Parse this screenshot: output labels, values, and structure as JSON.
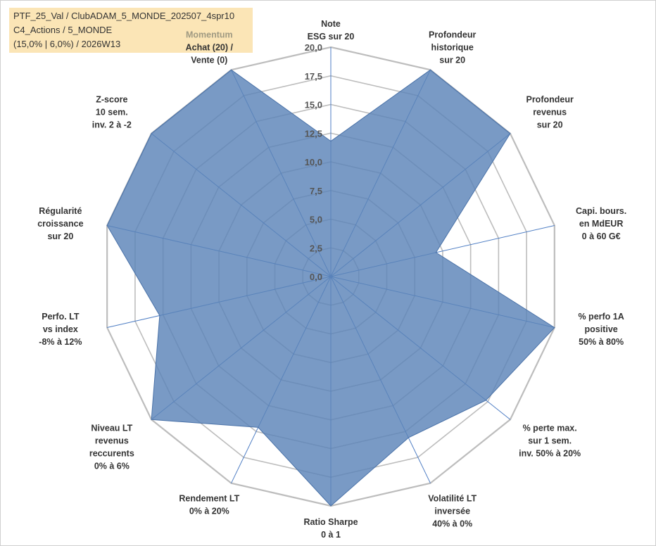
{
  "info": {
    "line1": "PTF_25_Val / ClubADAM_5_MONDE_202507_4spr10",
    "line2": "C4_Actions / 5_MONDE",
    "line3": "(15,0% | 6,0%) / 2026W13"
  },
  "colors": {
    "fill": "#5b84b8",
    "stroke": "#4a72a8",
    "grid": "#bdbdbd",
    "spoke": "#4f7ec4",
    "info_bg": "#fbe5b6",
    "momentum": "#a09a82"
  },
  "chart_data": {
    "type": "radar",
    "title": "",
    "rmin": 0,
    "rmax": 20,
    "ticks": [
      "0,0",
      "2,5",
      "5,0",
      "7,5",
      "10,0",
      "12,5",
      "15,0",
      "17,5",
      "20,0"
    ],
    "categories": [
      {
        "label": [
          "Note",
          "ESG sur 20"
        ]
      },
      {
        "label": [
          "Profondeur",
          "historique",
          "sur 20"
        ]
      },
      {
        "label": [
          "Profondeur",
          "revenus",
          "sur 20"
        ]
      },
      {
        "label": [
          "Capi. bours.",
          "en MdEUR",
          "0 à 60 G€"
        ]
      },
      {
        "label": [
          "% perfo 1A",
          "positive",
          "50% à 80%"
        ]
      },
      {
        "label": [
          "% perte max.",
          "sur 1 sem.",
          "inv. 50% à 20%"
        ]
      },
      {
        "label": [
          "Volatilité LT",
          "inversée",
          "40% à 0%"
        ]
      },
      {
        "label": [
          "Ratio Sharpe",
          "0 à 1"
        ]
      },
      {
        "label": [
          "Rendement LT",
          "0% à 20%"
        ]
      },
      {
        "label": [
          "Niveau LT",
          "revenus",
          "reccurents",
          "0% à 6%"
        ]
      },
      {
        "label": [
          "Perfo. LT",
          "vs index",
          "-8% à 12%"
        ]
      },
      {
        "label": [
          "Régularité",
          "croissance",
          "sur 20"
        ]
      },
      {
        "label": [
          "Z-score",
          "10 sem.",
          "inv. 2 à -2"
        ]
      },
      {
        "label": [
          "Momentum",
          "Achat (20) /",
          "Vente (0)"
        ]
      }
    ],
    "series": [
      {
        "values": [
          11.8,
          20,
          20,
          9.4,
          20,
          17.3,
          15.6,
          20,
          14.6,
          20,
          15.3,
          20,
          20,
          20
        ]
      }
    ]
  }
}
